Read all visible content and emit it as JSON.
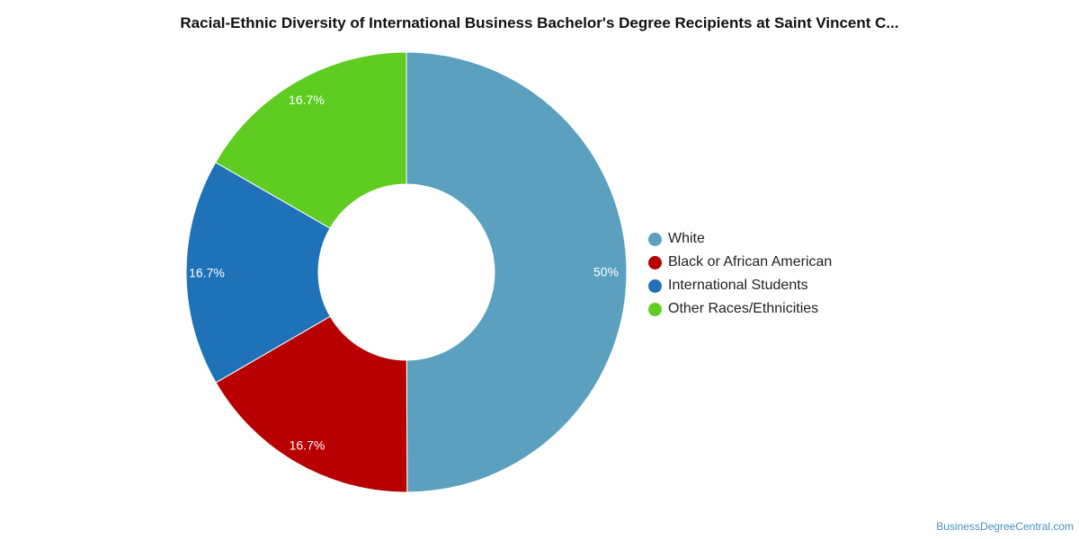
{
  "chart_data": {
    "type": "pie",
    "donut": true,
    "title": "Racial-Ethnic Diversity of International Business Bachelor's Degree Recipients at Saint Vincent C...",
    "slices": [
      {
        "label": "White",
        "value": 50,
        "display": "50%",
        "color": "#5ba1bf"
      },
      {
        "label": "Black or African American",
        "value": 16.7,
        "display": "16.7%",
        "color": "#b90000"
      },
      {
        "label": "International Students",
        "value": 16.7,
        "display": "16.7%",
        "color": "#1f72b8"
      },
      {
        "label": "Other Races/Ethnicities",
        "value": 16.7,
        "display": "16.7%",
        "color": "#5fcc22"
      }
    ],
    "legend_position": "right"
  },
  "footer": {
    "credit": "BusinessDegreeCentral.com"
  }
}
